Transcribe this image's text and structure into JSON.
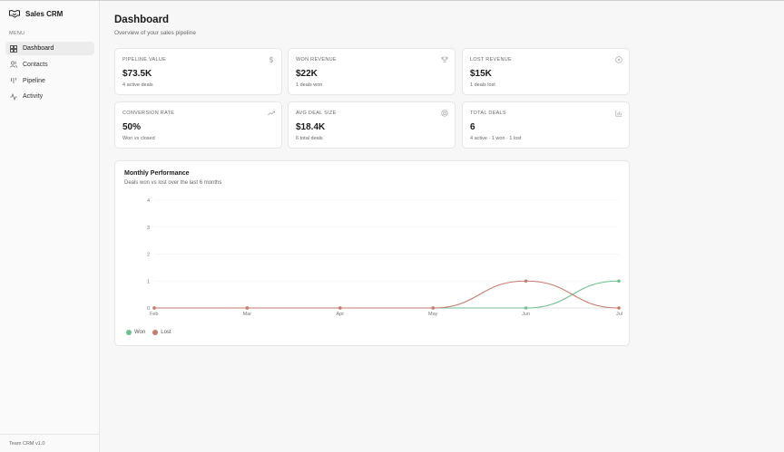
{
  "app": {
    "name": "Sales CRM",
    "version": "Team CRM v1.0"
  },
  "sidebar": {
    "menu_heading": "MENU",
    "items": [
      {
        "label": "Dashboard",
        "icon": "grid-icon",
        "active": true
      },
      {
        "label": "Contacts",
        "icon": "users-icon",
        "active": false
      },
      {
        "label": "Pipeline",
        "icon": "kanban-icon",
        "active": false
      },
      {
        "label": "Activity",
        "icon": "activity-icon",
        "active": false
      }
    ]
  },
  "header": {
    "title": "Dashboard",
    "subtitle": "Overview of your sales pipeline"
  },
  "stats": [
    {
      "label": "PIPELINE VALUE",
      "value": "$73.5K",
      "sub": "4 active deals",
      "icon": "dollar-icon"
    },
    {
      "label": "WON REVENUE",
      "value": "$22K",
      "sub": "1 deals won",
      "icon": "trophy-icon"
    },
    {
      "label": "LOST REVENUE",
      "value": "$15K",
      "sub": "1 deals lost",
      "icon": "x-circle-icon"
    },
    {
      "label": "CONVERSION RATE",
      "value": "50%",
      "sub": "Won vs closed",
      "icon": "trending-up-icon"
    },
    {
      "label": "AVG DEAL SIZE",
      "value": "$18.4K",
      "sub": "6 total deals",
      "icon": "target-icon"
    },
    {
      "label": "TOTAL DEALS",
      "value": "6",
      "sub": "4 active · 1 won · 1 lost",
      "icon": "bar-chart-icon"
    }
  ],
  "chart": {
    "title": "Monthly Performance",
    "subtitle": "Deals won vs lost over the last 6 months"
  },
  "chart_data": {
    "type": "line",
    "categories": [
      "Feb",
      "Mar",
      "Apr",
      "May",
      "Jun",
      "Jul"
    ],
    "series": [
      {
        "name": "Won",
        "values": [
          0,
          0,
          0,
          0,
          0,
          1
        ],
        "color": "#6fbf8f"
      },
      {
        "name": "Lost",
        "values": [
          0,
          0,
          0,
          0,
          1,
          0
        ],
        "color": "#c97a6e"
      }
    ],
    "y_ticks": [
      "0",
      "1",
      "2",
      "3",
      "4"
    ],
    "ylim": [
      0,
      4
    ],
    "grid": true,
    "legend": "bottom-left"
  },
  "colors": {
    "accent_won": "#6fbf8f",
    "accent_lost": "#c97a6e"
  }
}
